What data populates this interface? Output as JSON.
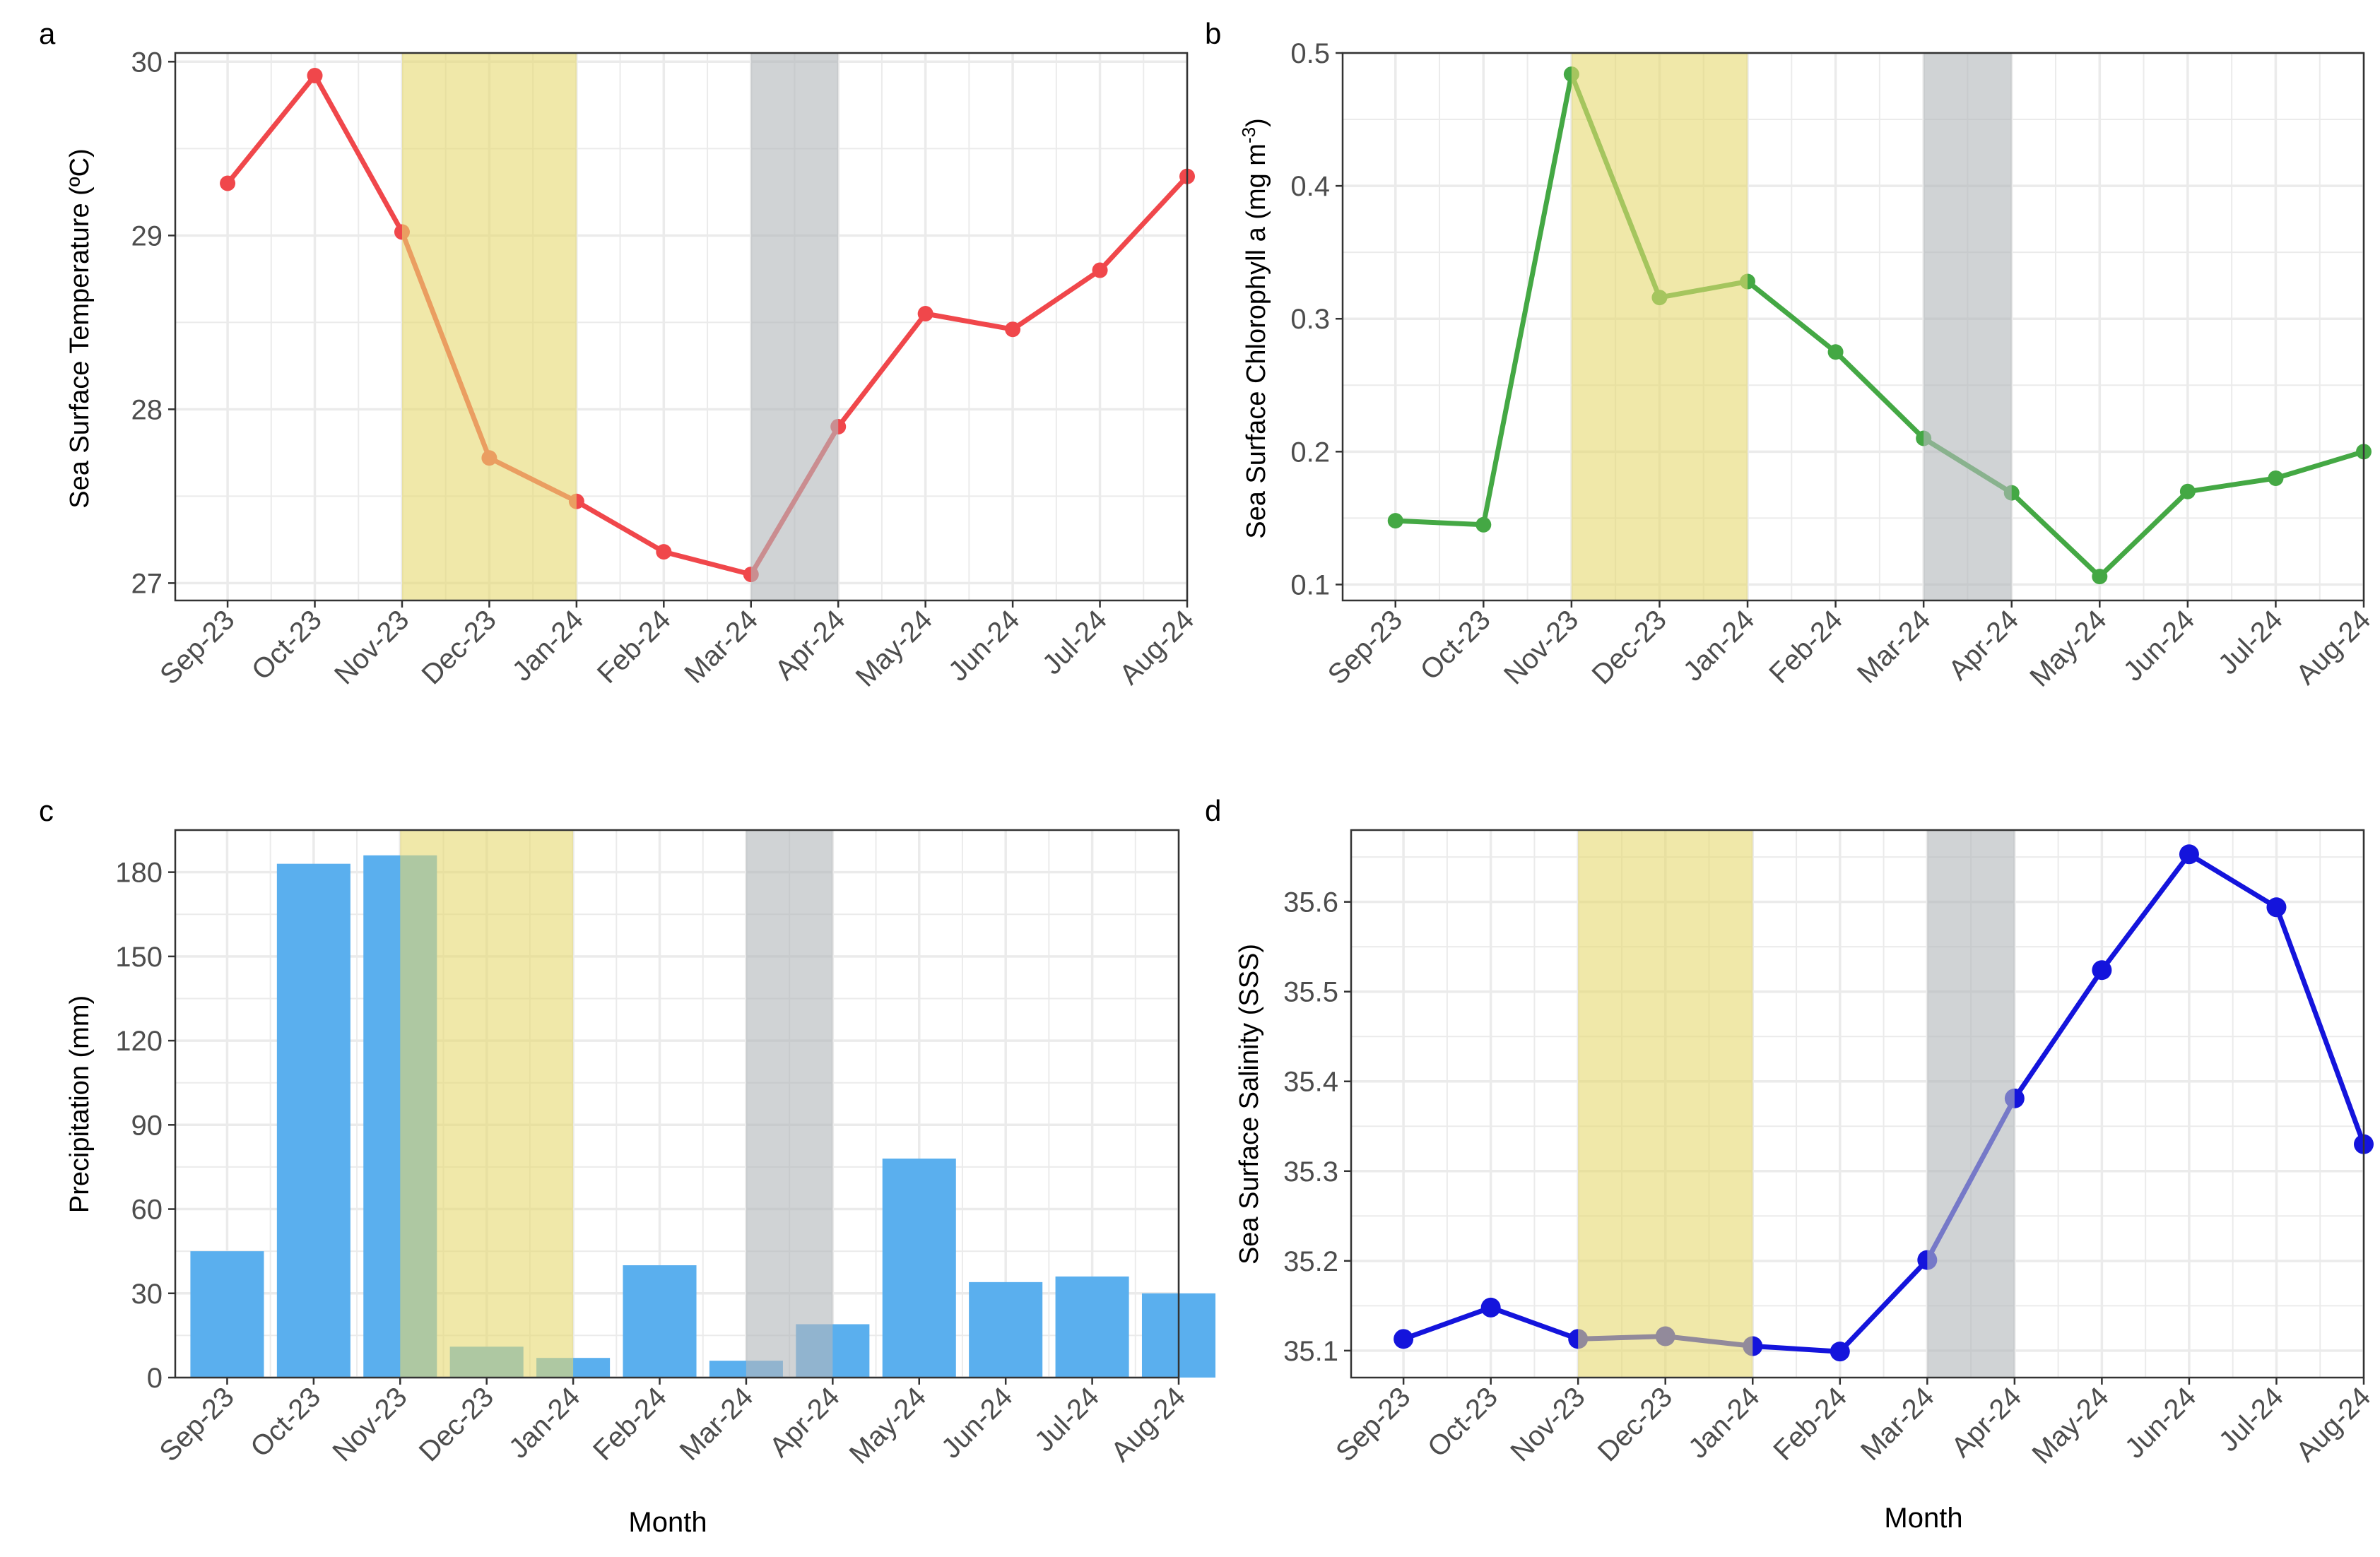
{
  "colors": {
    "temperature": "#f0474b",
    "chlorophyll": "#44a844",
    "precipitation": "#5aafee",
    "salinity": "#1414dc",
    "band_yellow": "#e6d870",
    "band_gray": "#b3b8bb",
    "grid": "#ebebeb",
    "axis_text": "#4d4d4d",
    "title_text": "#000000"
  },
  "chart_data": [
    {
      "panel": "a",
      "type": "line",
      "xlabel": "",
      "ylabel": "Sea Surface Temperature (ºC)",
      "categories": [
        "Sep-23",
        "Oct-23",
        "Nov-23",
        "Dec-23",
        "Jan-24",
        "Feb-24",
        "Mar-24",
        "Apr-24",
        "May-24",
        "Jun-24",
        "Jul-24",
        "Aug-24"
      ],
      "values": [
        29.3,
        29.92,
        29.02,
        27.72,
        27.47,
        27.18,
        27.05,
        27.9,
        28.55,
        28.46,
        28.8,
        29.34
      ],
      "ylim": [
        26.9,
        30.05
      ],
      "yticks": [
        27,
        28,
        29,
        30
      ],
      "ytick_labels": [
        "27",
        "28",
        "29",
        "30"
      ],
      "shaded": [
        {
          "from": 2,
          "to": 4,
          "color": "yellow"
        },
        {
          "from": 6,
          "to": 7,
          "color": "gray"
        }
      ],
      "legend": "none",
      "grid": true
    },
    {
      "panel": "b",
      "type": "line",
      "xlabel": "",
      "ylabel": "Sea Surface Chlorophyll a (mg m⁻³)",
      "categories": [
        "Sep-23",
        "Oct-23",
        "Nov-23",
        "Dec-23",
        "Jan-24",
        "Feb-24",
        "Mar-24",
        "Apr-24",
        "May-24",
        "Jun-24",
        "Jul-24",
        "Aug-24"
      ],
      "values": [
        0.148,
        0.145,
        0.484,
        0.316,
        0.328,
        0.275,
        0.21,
        0.169,
        0.106,
        0.17,
        0.18,
        0.2
      ],
      "ylim": [
        0.088,
        0.5
      ],
      "yticks": [
        0.1,
        0.2,
        0.3,
        0.4,
        0.5
      ],
      "ytick_labels": [
        "0.1",
        "0.2",
        "0.3",
        "0.4",
        "0.5"
      ],
      "shaded": [
        {
          "from": 2,
          "to": 4,
          "color": "yellow"
        },
        {
          "from": 6,
          "to": 7,
          "color": "gray"
        }
      ],
      "legend": "none",
      "grid": true
    },
    {
      "panel": "c",
      "type": "bar",
      "xlabel": "Month",
      "ylabel": "Precipitation (mm)",
      "categories": [
        "Sep-23",
        "Oct-23",
        "Nov-23",
        "Dec-23",
        "Jan-24",
        "Feb-24",
        "Mar-24",
        "Apr-24",
        "May-24",
        "Jun-24",
        "Jul-24",
        "Aug-24"
      ],
      "values": [
        45,
        183,
        186,
        11,
        7,
        40,
        6,
        19,
        78,
        34,
        36,
        30
      ],
      "ylim": [
        0,
        195
      ],
      "yticks": [
        0,
        30,
        60,
        90,
        120,
        150,
        180
      ],
      "ytick_labels": [
        "0",
        "30",
        "60",
        "90",
        "120",
        "150",
        "180"
      ],
      "shaded": [
        {
          "from": 2,
          "to": 4,
          "color": "yellow"
        },
        {
          "from": 6,
          "to": 7,
          "color": "gray"
        }
      ],
      "legend": "none",
      "grid": true
    },
    {
      "panel": "d",
      "type": "line",
      "xlabel": "Month",
      "ylabel": "Sea Surface Salinity (SSS)",
      "categories": [
        "Sep-23",
        "Oct-23",
        "Nov-23",
        "Dec-23",
        "Jan-24",
        "Feb-24",
        "Mar-24",
        "Apr-24",
        "May-24",
        "Jun-24",
        "Jul-24",
        "Aug-24"
      ],
      "values": [
        35.113,
        35.148,
        35.113,
        35.116,
        35.105,
        35.099,
        35.201,
        35.381,
        35.524,
        35.653,
        35.594,
        35.33
      ],
      "ylim": [
        35.07,
        35.68
      ],
      "yticks": [
        35.1,
        35.2,
        35.3,
        35.4,
        35.5,
        35.6
      ],
      "ytick_labels": [
        "35.1",
        "35.2",
        "35.3",
        "35.4",
        "35.5",
        "35.6"
      ],
      "shaded": [
        {
          "from": 2,
          "to": 4,
          "color": "yellow"
        },
        {
          "from": 6,
          "to": 7,
          "color": "gray"
        }
      ],
      "legend": "none",
      "grid": true
    }
  ]
}
